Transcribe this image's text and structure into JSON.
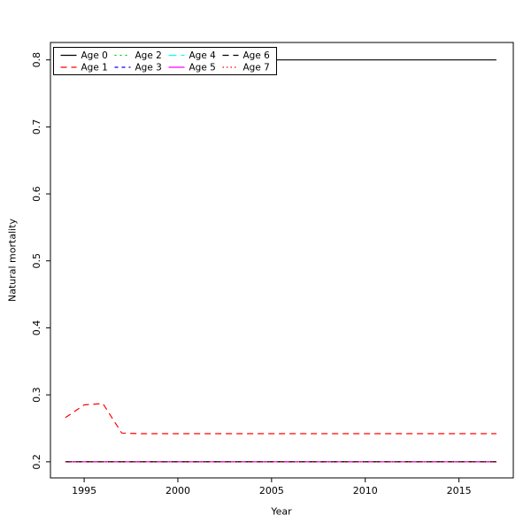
{
  "chart_data": {
    "type": "line",
    "title": "",
    "xlabel": "Year",
    "ylabel": "Natural mortality",
    "legend_position": "top-left",
    "grid": false,
    "xlim": [
      1993.2,
      2017.9
    ],
    "ylim": [
      0.176,
      0.826
    ],
    "x_ticks": [
      1995,
      2000,
      2005,
      2010,
      2015
    ],
    "y_ticks": [
      0.2,
      0.3,
      0.4,
      0.5,
      0.6,
      0.7,
      0.8
    ],
    "x": [
      1994,
      1995,
      1996,
      1997,
      1998,
      1999,
      2000,
      2001,
      2002,
      2003,
      2004,
      2005,
      2006,
      2007,
      2008,
      2009,
      2010,
      2011,
      2012,
      2013,
      2014,
      2015,
      2016,
      2017
    ],
    "series": [
      {
        "name": "Age 0",
        "color": "#000000",
        "dash": "solid",
        "values": [
          0.8,
          0.8,
          0.8,
          0.8,
          0.8,
          0.8,
          0.8,
          0.8,
          0.8,
          0.8,
          0.8,
          0.8,
          0.8,
          0.8,
          0.8,
          0.8,
          0.8,
          0.8,
          0.8,
          0.8,
          0.8,
          0.8,
          0.8,
          0.8
        ]
      },
      {
        "name": "Age 1",
        "color": "#FF0000",
        "dash": "dashed",
        "values": [
          0.266,
          0.285,
          0.287,
          0.243,
          0.242,
          0.242,
          0.242,
          0.242,
          0.242,
          0.242,
          0.242,
          0.242,
          0.242,
          0.242,
          0.242,
          0.242,
          0.242,
          0.242,
          0.242,
          0.242,
          0.242,
          0.242,
          0.242,
          0.242
        ]
      },
      {
        "name": "Age 2",
        "color": "#00CD00",
        "dash": "dotted",
        "values": [
          0.2,
          0.2,
          0.2,
          0.2,
          0.2,
          0.2,
          0.2,
          0.2,
          0.2,
          0.2,
          0.2,
          0.2,
          0.2,
          0.2,
          0.2,
          0.2,
          0.2,
          0.2,
          0.2,
          0.2,
          0.2,
          0.2,
          0.2,
          0.2
        ]
      },
      {
        "name": "Age 3",
        "color": "#0000FF",
        "dash": "shortdash",
        "values": [
          0.2,
          0.2,
          0.2,
          0.2,
          0.2,
          0.2,
          0.2,
          0.2,
          0.2,
          0.2,
          0.2,
          0.2,
          0.2,
          0.2,
          0.2,
          0.2,
          0.2,
          0.2,
          0.2,
          0.2,
          0.2,
          0.2,
          0.2,
          0.2
        ]
      },
      {
        "name": "Age 4",
        "color": "#00FFFF",
        "dash": "longdash",
        "values": [
          0.2,
          0.2,
          0.2,
          0.2,
          0.2,
          0.2,
          0.2,
          0.2,
          0.2,
          0.2,
          0.2,
          0.2,
          0.2,
          0.2,
          0.2,
          0.2,
          0.2,
          0.2,
          0.2,
          0.2,
          0.2,
          0.2,
          0.2,
          0.2
        ]
      },
      {
        "name": "Age 5",
        "color": "#FF00FF",
        "dash": "solid",
        "values": [
          0.2,
          0.2,
          0.2,
          0.2,
          0.2,
          0.2,
          0.2,
          0.2,
          0.2,
          0.2,
          0.2,
          0.2,
          0.2,
          0.2,
          0.2,
          0.2,
          0.2,
          0.2,
          0.2,
          0.2,
          0.2,
          0.2,
          0.2,
          0.2
        ]
      },
      {
        "name": "Age 6",
        "color": "#000000",
        "dash": "dashed",
        "values": [
          0.2,
          0.2,
          0.2,
          0.2,
          0.2,
          0.2,
          0.2,
          0.2,
          0.2,
          0.2,
          0.2,
          0.2,
          0.2,
          0.2,
          0.2,
          0.2,
          0.2,
          0.2,
          0.2,
          0.2,
          0.2,
          0.2,
          0.2,
          0.2
        ]
      },
      {
        "name": "Age 7",
        "color": "#FF0000",
        "dash": "finedot",
        "values": [
          0.2,
          0.2,
          0.2,
          0.2,
          0.2,
          0.2,
          0.2,
          0.2,
          0.2,
          0.2,
          0.2,
          0.2,
          0.2,
          0.2,
          0.2,
          0.2,
          0.2,
          0.2,
          0.2,
          0.2,
          0.2,
          0.2,
          0.2,
          0.2
        ]
      }
    ]
  }
}
